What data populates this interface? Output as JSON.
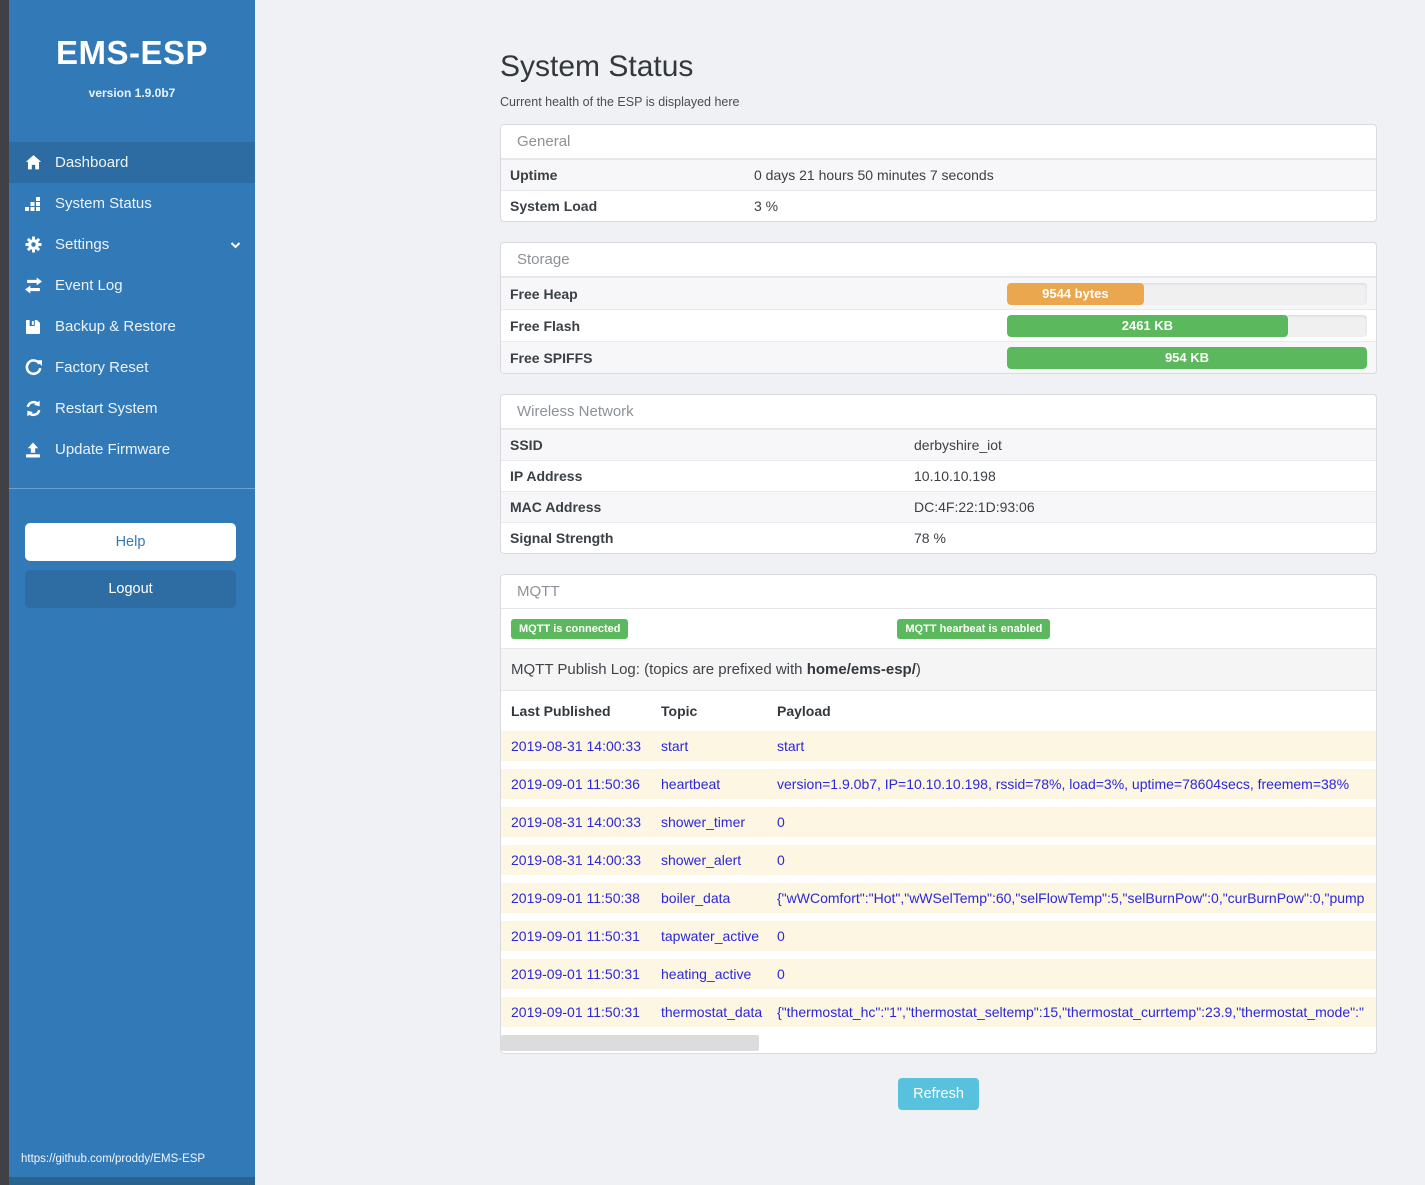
{
  "colors": {
    "sidebar_blue": "#3279b7",
    "active_item_blue": "#2d6ca2",
    "success_green": "#5cb85c",
    "warning_orange": "#eba74d",
    "info_cyan": "#58c2de",
    "log_text_blue": "#2b28d8",
    "log_row_cream": "#fcf6e3"
  },
  "sidebar": {
    "title": "EMS-ESP",
    "version": "version 1.9.0b7",
    "items": [
      {
        "label": "Dashboard",
        "icon": "home-icon"
      },
      {
        "label": "System Status",
        "icon": "system-status-icon"
      },
      {
        "label": "Settings",
        "icon": "gear-icon"
      },
      {
        "label": "Event Log",
        "icon": "exchange-icon"
      },
      {
        "label": "Backup & Restore",
        "icon": "save-icon"
      },
      {
        "label": "Factory Reset",
        "icon": "rotate-icon"
      },
      {
        "label": "Restart System",
        "icon": "refresh-icon"
      },
      {
        "label": "Update Firmware",
        "icon": "upload-icon"
      }
    ],
    "help_label": "Help",
    "logout_label": "Logout",
    "footer_link": "https://github.com/proddy/EMS-ESP"
  },
  "page": {
    "title": "System Status",
    "subtitle": "Current health of the ESP is displayed here",
    "refresh_label": "Refresh"
  },
  "general": {
    "heading": "General",
    "rows": [
      {
        "label": "Uptime",
        "value": "0 days 21 hours 50 minutes 7 seconds"
      },
      {
        "label": "System Load",
        "value": "3 %"
      }
    ]
  },
  "storage": {
    "heading": "Storage",
    "rows": [
      {
        "label": "Free Heap",
        "value": "9544 bytes",
        "percent": 38,
        "color": "#eba74d"
      },
      {
        "label": "Free Flash",
        "value": "2461 KB",
        "percent": 78,
        "color": "#5cb85c"
      },
      {
        "label": "Free SPIFFS",
        "value": "954 KB",
        "percent": 100,
        "color": "#5cb85c"
      }
    ]
  },
  "wireless": {
    "heading": "Wireless Network",
    "rows": [
      {
        "label": "SSID",
        "value": "derbyshire_iot"
      },
      {
        "label": "IP Address",
        "value": "10.10.10.198"
      },
      {
        "label": "MAC Address",
        "value": "DC:4F:22:1D:93:06"
      },
      {
        "label": "Signal Strength",
        "value": "78 %"
      }
    ]
  },
  "mqtt": {
    "heading": "MQTT",
    "badges": [
      "MQTT is connected",
      "MQTT hearbeat is enabled"
    ],
    "publish_log_prefix": "MQTT Publish Log: (topics are prefixed with ",
    "publish_log_bold": "home/ems-esp/",
    "publish_log_suffix": ")",
    "columns": [
      "Last Published",
      "Topic",
      "Payload"
    ],
    "log": [
      {
        "time": "2019-08-31 14:00:33",
        "topic": "start",
        "payload": "start"
      },
      {
        "time": "2019-09-01 11:50:36",
        "topic": "heartbeat",
        "payload": "version=1.9.0b7, IP=10.10.10.198, rssid=78%, load=3%, uptime=78604secs, freemem=38%"
      },
      {
        "time": "2019-08-31 14:00:33",
        "topic": "shower_timer",
        "payload": "0"
      },
      {
        "time": "2019-08-31 14:00:33",
        "topic": "shower_alert",
        "payload": "0"
      },
      {
        "time": "2019-09-01 11:50:38",
        "topic": "boiler_data",
        "payload": "{\"wWComfort\":\"Hot\",\"wWSelTemp\":60,\"selFlowTemp\":5,\"selBurnPow\":0,\"curBurnPow\":0,\"pump"
      },
      {
        "time": "2019-09-01 11:50:31",
        "topic": "tapwater_active",
        "payload": "0"
      },
      {
        "time": "2019-09-01 11:50:31",
        "topic": "heating_active",
        "payload": "0"
      },
      {
        "time": "2019-09-01 11:50:31",
        "topic": "thermostat_data",
        "payload": "{\"thermostat_hc\":\"1\",\"thermostat_seltemp\":15,\"thermostat_currtemp\":23.9,\"thermostat_mode\":\""
      }
    ]
  }
}
